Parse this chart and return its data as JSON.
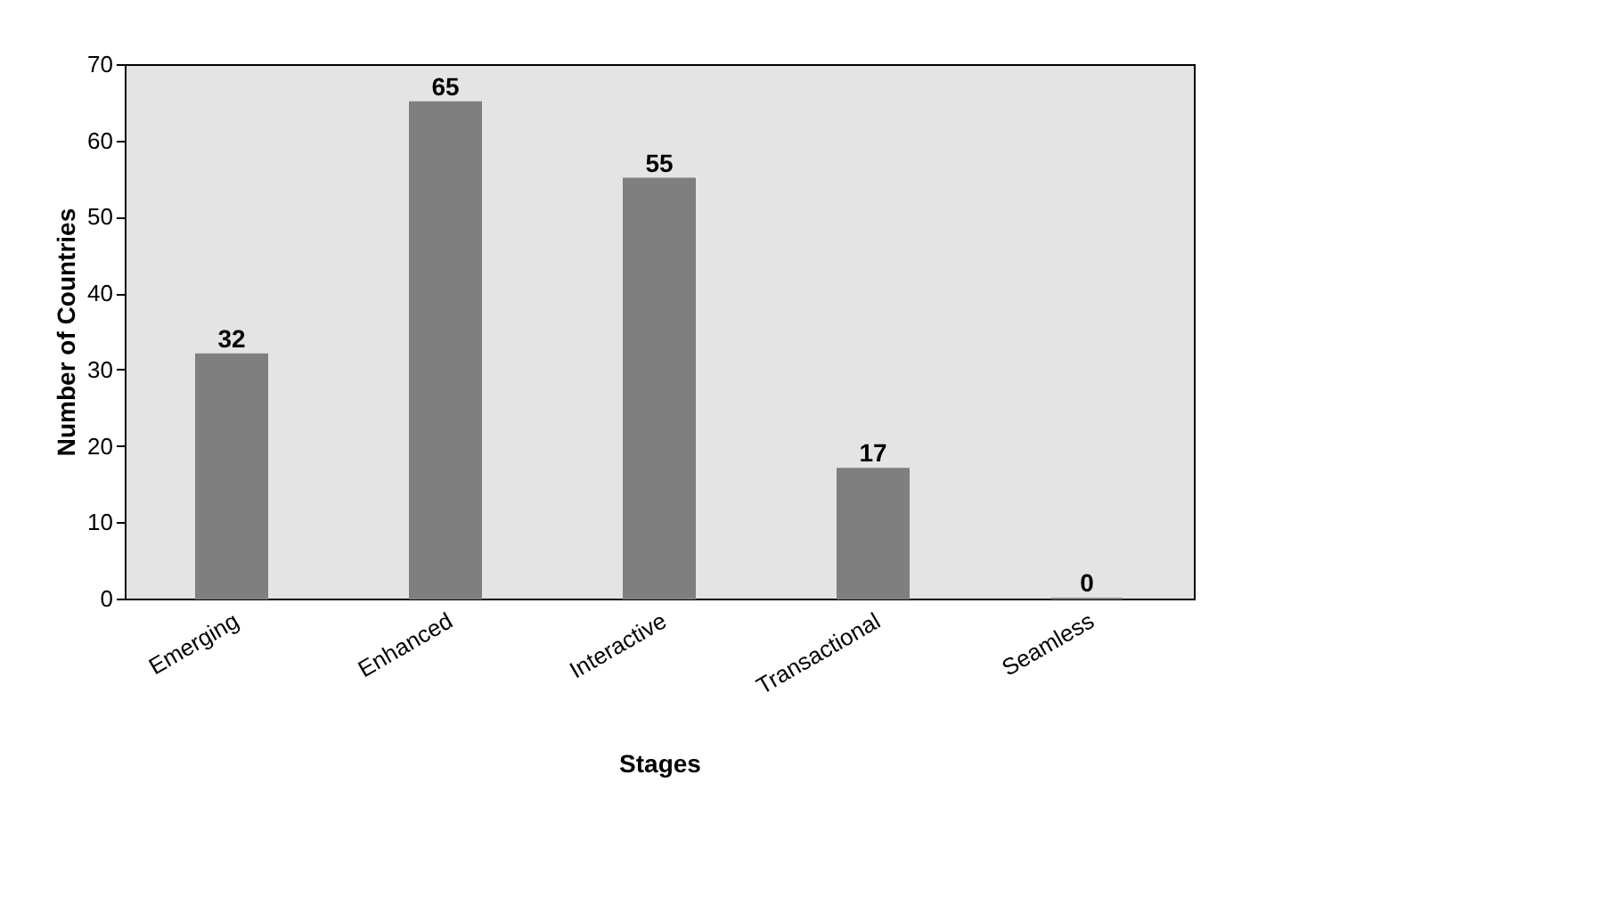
{
  "chart_data": {
    "type": "bar",
    "xlabel": "Stages",
    "ylabel": "Number of Countries",
    "categories": [
      "Emerging",
      "Enhanced",
      "Interactive",
      "Transactional",
      "Seamless"
    ],
    "values": [
      32,
      65,
      55,
      17,
      0
    ],
    "color": "#7f7f7f",
    "data_labels": true,
    "ylim": [
      0,
      70
    ],
    "yticks": [
      0,
      10,
      20,
      30,
      40,
      50,
      60,
      70
    ],
    "grid": false
  }
}
